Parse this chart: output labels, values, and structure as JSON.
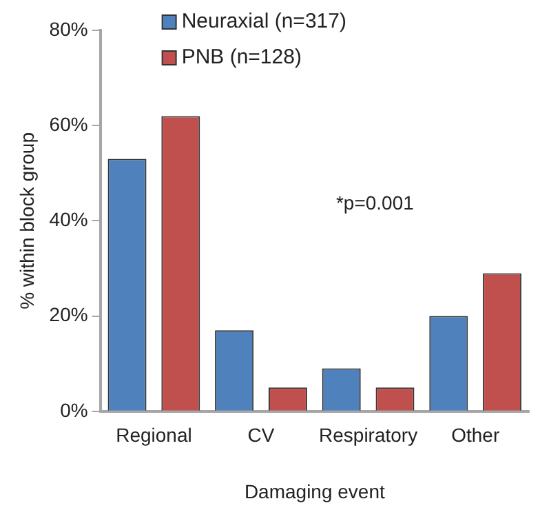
{
  "chart_data": {
    "type": "bar",
    "xlabel": "Damaging event",
    "ylabel": "% within block group",
    "categories": [
      "Regional",
      "CV",
      "Respiratory",
      "Other"
    ],
    "series": [
      {
        "name": "Neuraxial (n=317)",
        "color": "#4f81bd",
        "values": [
          53,
          17,
          9,
          20
        ]
      },
      {
        "name": "PNB (n=128)",
        "color": "#c0504d",
        "values": [
          62,
          5,
          5,
          29
        ]
      }
    ],
    "ylim": [
      0,
      80
    ],
    "yticks": [
      {
        "value": 0,
        "label": "0%"
      },
      {
        "value": 20,
        "label": "20%"
      },
      {
        "value": 40,
        "label": "40%"
      },
      {
        "value": 60,
        "label": "60%"
      },
      {
        "value": 80,
        "label": "80%"
      }
    ],
    "grid": false,
    "legend": "top left",
    "annotations": [
      "*p=0.001"
    ]
  }
}
